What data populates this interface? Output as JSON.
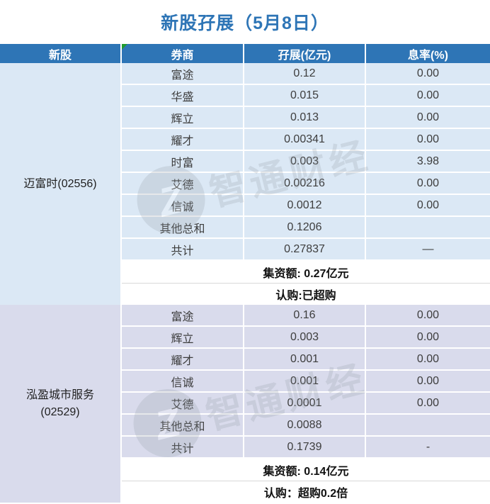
{
  "title": "新股孖展（5月8日）",
  "colors": {
    "header_bg": "#2e75b6",
    "title_text": "#2e75b6",
    "grid_line": "#ffffff",
    "section1_bg": "#dbe8f5",
    "section2_bg": "#d9dbec",
    "corner_marker_green": "#1f9b2f",
    "cell_text": "#3d3d3d"
  },
  "watermark": {
    "text": "智通财经",
    "logo_glyph": "Z"
  },
  "table": {
    "headers": [
      "新股",
      "券商",
      "孖展(亿元)",
      "息率(%)"
    ],
    "sections": [
      {
        "stock_lines": [
          "迈富时(02556)"
        ],
        "bg": "#dbe8f5",
        "rows": [
          [
            "富途",
            "0.12",
            "0.00"
          ],
          [
            "华盛",
            "0.015",
            "0.00"
          ],
          [
            "辉立",
            "0.013",
            "0.00"
          ],
          [
            "耀才",
            "0.00341",
            "0.00"
          ],
          [
            "时富",
            "0.003",
            "3.98"
          ],
          [
            "艾德",
            "0.00216",
            "0.00"
          ],
          [
            "信诚",
            "0.0012",
            "0.00"
          ],
          [
            "其他总和",
            "0.1206",
            ""
          ],
          [
            "共计",
            "0.27837",
            "—"
          ]
        ],
        "summaries": [
          "集资额: 0.27亿元",
          "认购:已超购"
        ]
      },
      {
        "stock_lines": [
          "泓盈城市服务",
          "(02529)"
        ],
        "bg": "#d9dbec",
        "rows": [
          [
            "富途",
            "0.16",
            "0.00"
          ],
          [
            "辉立",
            "0.003",
            "0.00"
          ],
          [
            "耀才",
            "0.001",
            "0.00"
          ],
          [
            "信诚",
            "0.001",
            "0.00"
          ],
          [
            "艾德",
            "0.0001",
            "0.00"
          ],
          [
            "其他总和",
            "0.0088",
            ""
          ],
          [
            "共计",
            "0.1739",
            "-"
          ]
        ],
        "summaries": [
          "集资额: 0.14亿元",
          "认购：超购0.2倍"
        ]
      }
    ]
  }
}
